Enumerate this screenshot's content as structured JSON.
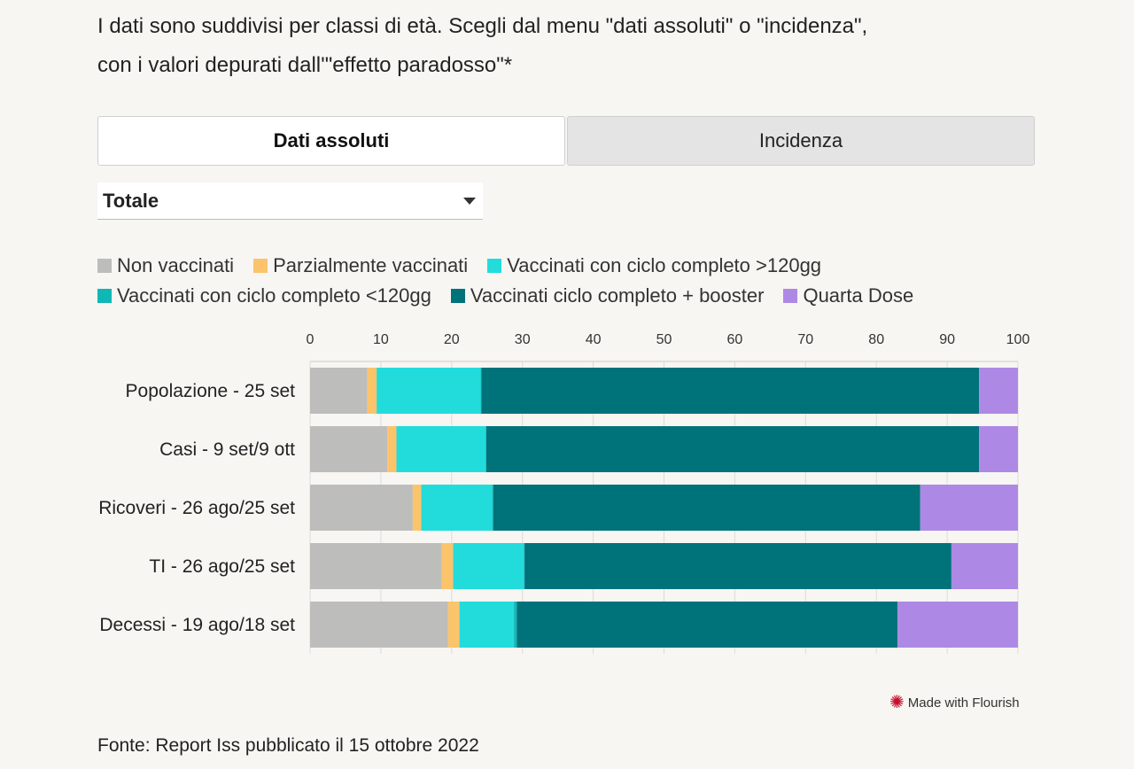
{
  "intro": {
    "line1": "I dati sono suddivisi per classi di età. Scegli dal menu \"dati assoluti\" o \"incidenza\",",
    "line2": "con i valori depurati dall'\"effetto paradosso\"*"
  },
  "tabs": [
    {
      "label": "Dati assoluti",
      "active": true
    },
    {
      "label": "Incidenza",
      "active": false
    }
  ],
  "dropdown": {
    "selected": "Totale"
  },
  "chart_data": {
    "type": "bar",
    "orientation": "horizontal",
    "stacked": true,
    "categories": [
      "Popolazione - 25 set",
      "Casi - 9 set/9 ott",
      "Ricoveri - 26 ago/25 set",
      "TI - 26 ago/25 set",
      "Decessi - 19 ago/18 set"
    ],
    "series": [
      {
        "name": "Non vaccinati",
        "color": "#bdbdbb",
        "values": [
          8.1,
          10.9,
          14.5,
          18.6,
          19.5
        ]
      },
      {
        "name": "Parzialmente vaccinati",
        "color": "#fcc46a",
        "values": [
          1.3,
          1.3,
          1.2,
          1.6,
          1.6
        ]
      },
      {
        "name": "Vaccinati con ciclo completo >120gg",
        "color": "#22dcdc",
        "values": [
          14.7,
          12.6,
          10.0,
          10.0,
          7.7
        ]
      },
      {
        "name": "Vaccinati con ciclo completo <120gg",
        "color": "#10b8b5",
        "values": [
          0.1,
          0.1,
          0.2,
          0.1,
          0.4
        ]
      },
      {
        "name": "Vaccinati ciclo completo + booster",
        "color": "#00727a",
        "values": [
          70.3,
          69.6,
          60.3,
          60.3,
          53.8
        ]
      },
      {
        "name": "Quarta Dose",
        "color": "#ad89e5",
        "values": [
          5.5,
          5.5,
          13.8,
          9.4,
          17.0
        ]
      }
    ],
    "xlim": [
      0,
      100
    ],
    "xticks": [
      0,
      10,
      20,
      30,
      40,
      50,
      60,
      70,
      80,
      90,
      100
    ],
    "legend": "top",
    "grid": true
  },
  "footer": {
    "flourish": "Made with Flourish",
    "source": "Fonte: Report Iss pubblicato il 15 ottobre 2022"
  }
}
